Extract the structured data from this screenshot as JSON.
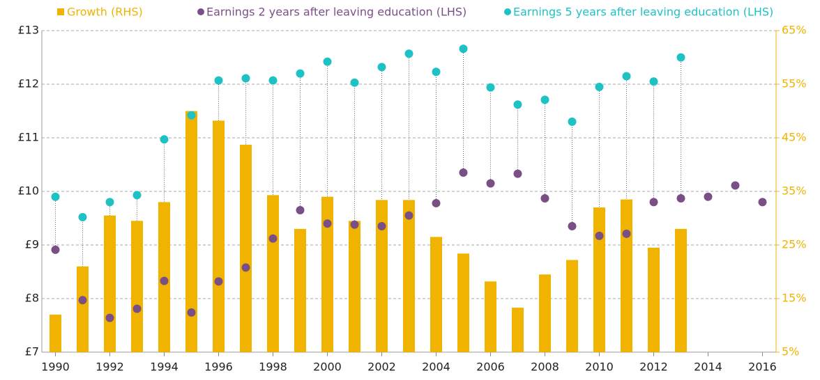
{
  "chart_data": {
    "type": "combo",
    "x": [
      1990,
      1991,
      1992,
      1993,
      1994,
      1995,
      1996,
      1997,
      1998,
      1999,
      2000,
      2001,
      2002,
      2003,
      2004,
      2005,
      2006,
      2007,
      2008,
      2009,
      2010,
      2011,
      2012,
      2013,
      2014,
      2015,
      2016
    ],
    "series": [
      {
        "name": "Growth (RHS)",
        "type": "bar",
        "axis": "y2",
        "color": "#f0b400",
        "values": [
          12,
          21,
          30.5,
          29.5,
          33,
          50,
          48.2,
          43.7,
          34.3,
          28,
          34,
          29.5,
          33.4,
          33.4,
          26.5,
          23.4,
          18.2,
          13.3,
          19.5,
          22.2,
          32,
          33.5,
          24.5,
          28,
          null,
          null,
          null
        ]
      },
      {
        "name": "Earnings 2 years after leaving education (LHS)",
        "type": "scatter",
        "color": "#7a4f86",
        "values": [
          8.91,
          7.97,
          7.64,
          7.81,
          8.33,
          7.74,
          8.32,
          8.58,
          9.12,
          9.65,
          9.4,
          9.38,
          9.35,
          9.55,
          9.78,
          10.35,
          10.15,
          10.33,
          9.87,
          9.35,
          9.17,
          9.21,
          9.8,
          9.87,
          9.9,
          10.11,
          9.8
        ]
      },
      {
        "name": "Earnings 5 years after leaving education (LHS)",
        "type": "scatter",
        "color": "#1ec1c4",
        "values": [
          9.9,
          9.52,
          9.8,
          9.93,
          10.97,
          11.42,
          12.07,
          12.11,
          12.07,
          12.2,
          12.42,
          12.03,
          12.32,
          12.57,
          12.23,
          12.66,
          11.94,
          11.62,
          11.71,
          11.3,
          11.95,
          12.15,
          12.05,
          12.5,
          null,
          null,
          null
        ]
      }
    ],
    "xlim": [
      1989.5,
      2016.5
    ],
    "xticks": [
      1990,
      1992,
      1994,
      1996,
      1998,
      2000,
      2002,
      2004,
      2006,
      2008,
      2010,
      2012,
      2014,
      2016
    ],
    "ylim": [
      7,
      13
    ],
    "yticks": [
      {
        "value": 7,
        "label": "£7"
      },
      {
        "value": 8,
        "label": "£8"
      },
      {
        "value": 9,
        "label": "£9"
      },
      {
        "value": 10,
        "label": "£10"
      },
      {
        "value": 11,
        "label": "£11"
      },
      {
        "value": 12,
        "label": "£12"
      },
      {
        "value": 13,
        "label": "£13"
      }
    ],
    "y2lim": [
      5,
      65
    ],
    "y2ticks": [
      {
        "value": 5,
        "label": "5%"
      },
      {
        "value": 15,
        "label": "15%"
      },
      {
        "value": 25,
        "label": "25%"
      },
      {
        "value": 35,
        "label": "35%"
      },
      {
        "value": 45,
        "label": "45%"
      },
      {
        "value": 55,
        "label": "55%"
      },
      {
        "value": 65,
        "label": "65%"
      }
    ],
    "grid": true,
    "y2_color": "#f0b400"
  }
}
